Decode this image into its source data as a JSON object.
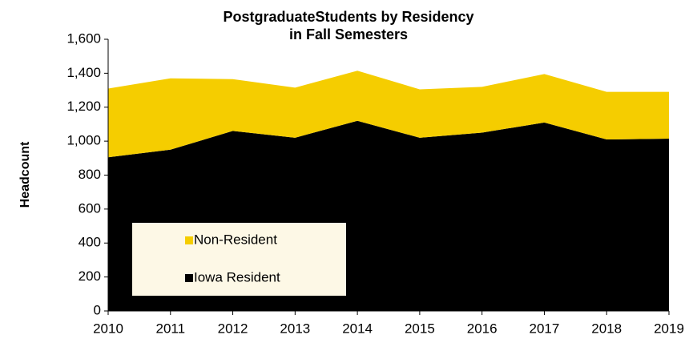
{
  "chart_data": {
    "type": "stacked_area",
    "title": [
      "PostgraduateStudents by Residency",
      "in Fall Semesters"
    ],
    "y_label": "Headcount",
    "categories": [
      "2010",
      "2011",
      "2012",
      "2013",
      "2014",
      "2015",
      "2016",
      "2017",
      "2018",
      "2019"
    ],
    "series": [
      {
        "name": "Iowa Resident",
        "color": "#000000",
        "values": [
          905,
          950,
          1060,
          1020,
          1120,
          1020,
          1050,
          1110,
          1010,
          1015
        ]
      },
      {
        "name": "Non-Resident",
        "color": "#f5cd00",
        "values": [
          405,
          420,
          305,
          295,
          295,
          285,
          270,
          285,
          280,
          275
        ]
      }
    ],
    "ylim": [
      0,
      1600
    ],
    "yticks": [
      0,
      200,
      400,
      600,
      800,
      {
        "value": 1000,
        "label": "1,000"
      },
      {
        "value": 1200,
        "label": "1,200"
      },
      {
        "value": 1400,
        "label": "1,400"
      },
      {
        "value": 1600,
        "label": "1,600"
      }
    ],
    "legend": "lower left"
  }
}
